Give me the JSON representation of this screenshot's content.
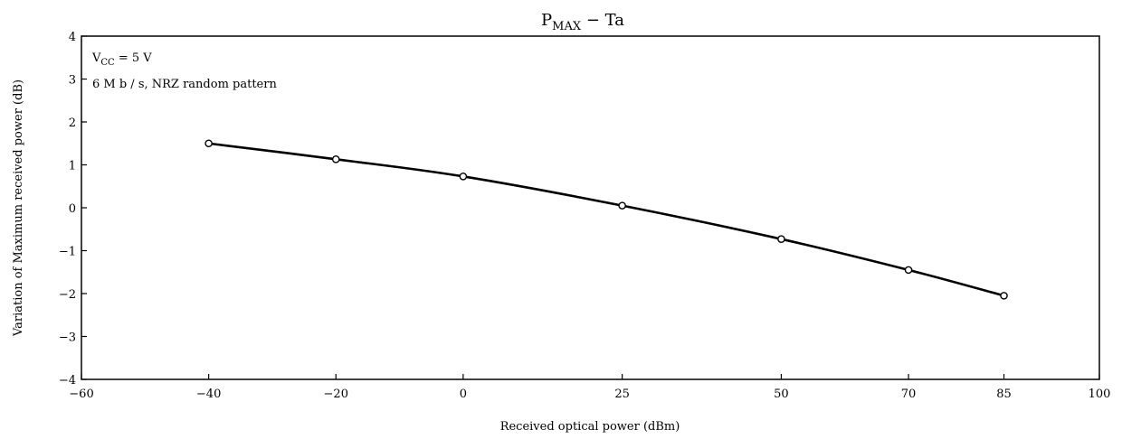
{
  "chart_data": {
    "type": "line",
    "title": "PMAX − Ta",
    "title_main": "P",
    "title_sub": "MAX",
    "title_rest": " − Ta",
    "xlabel": "Received optical power   (dBm)",
    "ylabel": "Variation of Maximum received power   (dB)",
    "xlim": [
      -60,
      100
    ],
    "ylim": [
      -4,
      4
    ],
    "x_ticks": [
      {
        "value": -60,
        "label": "−60"
      },
      {
        "value": -40,
        "label": "−40"
      },
      {
        "value": -20,
        "label": "−20"
      },
      {
        "value": 0,
        "label": "0"
      },
      {
        "value": 25,
        "label": "25"
      },
      {
        "value": 50,
        "label": "50"
      },
      {
        "value": 70,
        "label": "70"
      },
      {
        "value": 85,
        "label": "85"
      },
      {
        "value": 100,
        "label": "100"
      }
    ],
    "y_ticks": [
      {
        "value": 4,
        "label": "4"
      },
      {
        "value": 3,
        "label": "3"
      },
      {
        "value": 2,
        "label": "2"
      },
      {
        "value": 1,
        "label": "1"
      },
      {
        "value": 0,
        "label": "0"
      },
      {
        "value": -1,
        "label": "−1"
      },
      {
        "value": -2,
        "label": "−2"
      },
      {
        "value": -3,
        "label": "−3"
      },
      {
        "value": -4,
        "label": "−4"
      }
    ],
    "grid": false,
    "series": [
      {
        "x": [
          -40,
          -20,
          0,
          25,
          50,
          70,
          85
        ],
        "y": [
          1.5,
          1.13,
          0.73,
          0.05,
          -0.73,
          -1.45,
          -2.05
        ]
      }
    ],
    "annotations": {
      "vcc_main": "V",
      "vcc_sub": "CC",
      "vcc_rest": " = 5 V",
      "condition": "6 M b / s, NRZ random pattern"
    }
  }
}
